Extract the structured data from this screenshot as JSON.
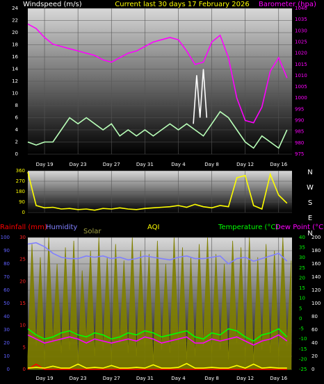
{
  "chart_data": [
    {
      "type": "line",
      "title": "Current last 30 days 17 February 2026",
      "xlim": [
        0,
        31.6
      ],
      "xticks": [
        {
          "value": 2,
          "label": "Day 19"
        },
        {
          "value": 6,
          "label": "Day 23"
        },
        {
          "value": 10,
          "label": "Day 27"
        },
        {
          "value": 14,
          "label": "Day 31"
        },
        {
          "value": 18,
          "label": "Day 4"
        },
        {
          "value": 22,
          "label": "Day 8"
        },
        {
          "value": 26,
          "label": "Day 12"
        },
        {
          "value": 30,
          "label": "Day 16"
        }
      ],
      "x": [
        0,
        1,
        2,
        3,
        4,
        5,
        6,
        7,
        8,
        9,
        10,
        11,
        12,
        13,
        14,
        15,
        16,
        17,
        18,
        19,
        20,
        21,
        22,
        23,
        24,
        25,
        26,
        27,
        28,
        29,
        30,
        31
      ],
      "axes": [
        {
          "label": "Windspeed (m/s)",
          "color": "#ffffff",
          "side": "left",
          "lim": [
            0,
            24
          ],
          "ticks": [
            0,
            2,
            4,
            6,
            8,
            10,
            12,
            14,
            16,
            18,
            20,
            22,
            24
          ]
        },
        {
          "label": "Barometer (hpa)",
          "color": "#ff00ff",
          "side": "right",
          "lim": [
            975,
            1040
          ],
          "ticks": [
            975,
            980,
            985,
            990,
            995,
            1000,
            1005,
            1010,
            1015,
            1020,
            1025,
            1030,
            1035,
            1040
          ]
        }
      ],
      "series": [
        {
          "color": "#b8ffb8",
          "axis": 0,
          "values": [
            2,
            1.5,
            2,
            2,
            4,
            6,
            5,
            6,
            5,
            4,
            5,
            3,
            4,
            3,
            4,
            3,
            4,
            5,
            4,
            5,
            4,
            3,
            5,
            7,
            6,
            4,
            2,
            1,
            3,
            2,
            1,
            4
          ]
        },
        {
          "color": "#ffffff",
          "axis": 0,
          "x": [
            19.8,
            20.2,
            20.6,
            21.0,
            21.4
          ],
          "values": [
            5,
            13,
            6,
            14,
            6
          ]
        },
        {
          "color": "#ff00ff",
          "axis": 1,
          "values": [
            1033,
            1031,
            1027,
            1024,
            1023,
            1022,
            1021,
            1020,
            1019,
            1017,
            1016,
            1018,
            1020,
            1021,
            1023,
            1025,
            1026,
            1027,
            1026,
            1021,
            1015,
            1016,
            1025,
            1028,
            1018,
            1000,
            990,
            989,
            996,
            1012,
            1018,
            1009
          ]
        }
      ]
    },
    {
      "type": "line",
      "xlim": [
        0,
        31.6
      ],
      "xticks": [
        2,
        6,
        10,
        14,
        18,
        22,
        26,
        30
      ],
      "x": [
        0,
        1,
        2,
        3,
        4,
        5,
        6,
        7,
        8,
        9,
        10,
        11,
        12,
        13,
        14,
        15,
        16,
        17,
        18,
        19,
        20,
        21,
        22,
        23,
        24,
        25,
        26,
        27,
        28,
        29,
        30,
        31
      ],
      "axes": [
        {
          "color": "#ffff00",
          "side": "left",
          "lim": [
            0,
            360
          ],
          "ticks": [
            0,
            90,
            180,
            270,
            360
          ]
        }
      ],
      "compass": [
        "N",
        "W",
        "S",
        "E",
        "N"
      ],
      "series": [
        {
          "color": "#ffff00",
          "axis": 0,
          "values": [
            350,
            60,
            40,
            45,
            30,
            35,
            25,
            30,
            20,
            35,
            30,
            40,
            30,
            25,
            35,
            40,
            45,
            50,
            60,
            45,
            70,
            50,
            40,
            60,
            50,
            300,
            320,
            60,
            30,
            330,
            150,
            80
          ]
        }
      ]
    },
    {
      "type": "line",
      "xlim": [
        0,
        31.6
      ],
      "xticks": [
        {
          "value": 2,
          "label": "Day 19"
        },
        {
          "value": 6,
          "label": "Day 23"
        },
        {
          "value": 10,
          "label": "Day 27"
        },
        {
          "value": 14,
          "label": "Day 31"
        },
        {
          "value": 18,
          "label": "Day 4"
        },
        {
          "value": 22,
          "label": "Day 8"
        },
        {
          "value": 26,
          "label": "Day 12"
        },
        {
          "value": 30,
          "label": "Day 16"
        }
      ],
      "x": [
        0,
        1,
        2,
        3,
        4,
        5,
        6,
        7,
        8,
        9,
        10,
        11,
        12,
        13,
        14,
        15,
        16,
        17,
        18,
        19,
        20,
        21,
        22,
        23,
        24,
        25,
        26,
        27,
        28,
        29,
        30,
        31
      ],
      "axes": [
        {
          "color": "#6060ff",
          "side": "left",
          "lim": [
            0,
            100
          ],
          "ticks": [
            0,
            10,
            20,
            30,
            40,
            50,
            60,
            70,
            80,
            90,
            100
          ]
        },
        {
          "color": "#ff2020",
          "side": "left",
          "lim": [
            0,
            30
          ],
          "ticks": [
            0,
            5,
            10,
            15,
            20,
            25,
            30
          ]
        },
        {
          "color": "#00ff00",
          "side": "right",
          "lim": [
            -25,
            40
          ],
          "ticks": [
            -25,
            -20,
            -15,
            -10,
            -5,
            0,
            5,
            10,
            15,
            20,
            25,
            30,
            35,
            40
          ]
        },
        {
          "color": "#ffffff",
          "side": "right",
          "lim": [
            0,
            200
          ],
          "ticks": [
            0,
            20,
            40,
            60,
            80,
            100,
            120,
            140,
            160,
            180,
            200
          ]
        }
      ],
      "series": [
        {
          "name": "Solar",
          "color": "#808000",
          "axis": 3,
          "fill": true,
          "x": [
            0,
            0.5,
            1,
            1.5,
            2,
            2.5,
            3,
            3.5,
            4,
            4.5,
            5,
            5.5,
            6,
            6.5,
            7,
            7.5,
            8,
            8.5,
            9,
            9.5,
            10,
            10.5,
            11,
            11.5,
            12,
            12.5,
            13,
            13.5,
            14,
            14.5,
            15,
            15.5,
            16,
            16.5,
            17,
            17.5,
            18,
            18.5,
            19,
            19.5,
            20,
            20.5,
            21,
            21.5,
            22,
            22.5,
            23,
            23.5,
            24,
            24.5,
            25,
            25.5,
            26,
            26.5,
            27,
            27.5,
            28,
            28.5,
            29,
            29.5,
            30,
            30.5,
            31,
            31.5
          ],
          "values": [
            20,
            190,
            35,
            170,
            15,
            200,
            40,
            160,
            25,
            185,
            30,
            195,
            10,
            150,
            45,
            180,
            20,
            200,
            30,
            170,
            15,
            190,
            40,
            165,
            25,
            200,
            20,
            180,
            35,
            175,
            10,
            195,
            30,
            160,
            25,
            200,
            40,
            185,
            15,
            170,
            20,
            190,
            35,
            200,
            25,
            175,
            30,
            160,
            15,
            195,
            40,
            185,
            20,
            200,
            10,
            170,
            30,
            190,
            25,
            180,
            20,
            200,
            35,
            165
          ]
        },
        {
          "name": "Humidity",
          "color": "#8080ff",
          "axis": 0,
          "values": [
            95,
            96,
            93,
            88,
            85,
            84,
            84,
            86,
            85,
            86,
            84,
            85,
            83,
            84,
            86,
            85,
            84,
            83,
            85,
            86,
            84,
            84,
            85,
            86,
            80,
            84,
            85,
            82,
            84,
            86,
            88,
            82
          ]
        },
        {
          "name": "Rainfall (mm)",
          "color": "#ff0000",
          "axis": 1,
          "values": [
            0,
            1.2,
            0,
            0,
            0,
            0,
            0,
            0,
            0,
            0,
            0,
            0,
            0,
            0,
            0,
            0,
            0,
            0,
            0,
            0,
            0,
            0,
            0,
            0,
            0,
            0,
            0,
            0,
            0,
            0,
            0,
            0
          ]
        },
        {
          "name": "AQI",
          "color": "#ffff00",
          "axis": 3,
          "values": [
            2,
            3,
            2,
            5,
            2,
            2,
            8,
            2,
            3,
            2,
            6,
            2,
            2,
            3,
            2,
            7,
            2,
            2,
            3,
            9,
            2,
            2,
            3,
            2,
            2,
            6,
            2,
            8,
            2,
            3,
            2,
            2
          ]
        },
        {
          "name": "Temperature (°C)",
          "color": "#00ff00",
          "axis": 2,
          "values": [
            -5,
            -8,
            -10,
            -9,
            -7,
            -6,
            -8,
            -9,
            -7,
            -8,
            -10,
            -9,
            -7,
            -8,
            -6,
            -7,
            -9,
            -8,
            -7,
            -6,
            -9,
            -10,
            -7,
            -8,
            -5,
            -6,
            -9,
            -11,
            -8,
            -7,
            -5,
            -9
          ]
        },
        {
          "name": "Dew Point (°C)",
          "color": "#ff00ff",
          "axis": 2,
          "values": [
            -8,
            -10,
            -12,
            -11,
            -10,
            -9,
            -10,
            -12,
            -10,
            -11,
            -12,
            -11,
            -10,
            -11,
            -9,
            -10,
            -12,
            -11,
            -10,
            -9,
            -12,
            -12,
            -10,
            -11,
            -10,
            -9,
            -11,
            -13,
            -11,
            -10,
            -8,
            -11
          ]
        }
      ]
    }
  ]
}
